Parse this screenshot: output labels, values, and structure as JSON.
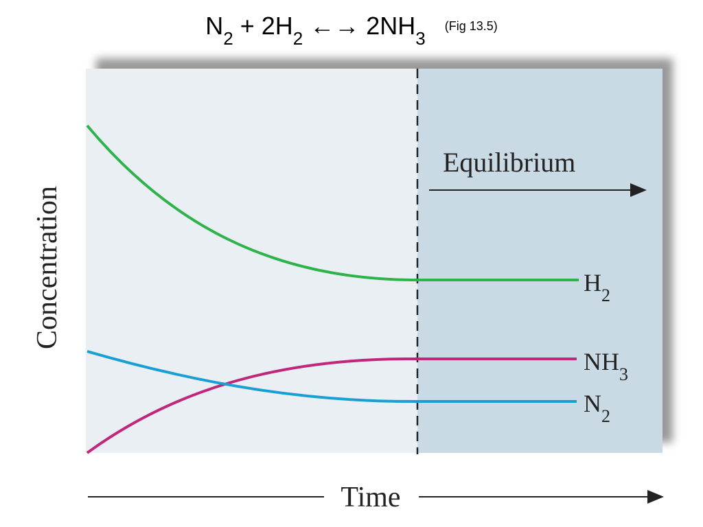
{
  "title": {
    "runs": [
      "N",
      "2",
      " + 2H",
      "2",
      " ←→ 2NH",
      "3"
    ],
    "note": "(Fig 13.5)"
  },
  "plot": {
    "y_label": "Concentration",
    "x_label": "Time",
    "region_label": "Equilibrium",
    "curves": [
      {
        "label": [
          "H",
          "2"
        ],
        "color": "#2db34a"
      },
      {
        "label": [
          "NH",
          "3"
        ],
        "color": "#c0267a"
      },
      {
        "label": [
          "N",
          "2"
        ],
        "color": "#1a9fd4"
      }
    ]
  }
}
